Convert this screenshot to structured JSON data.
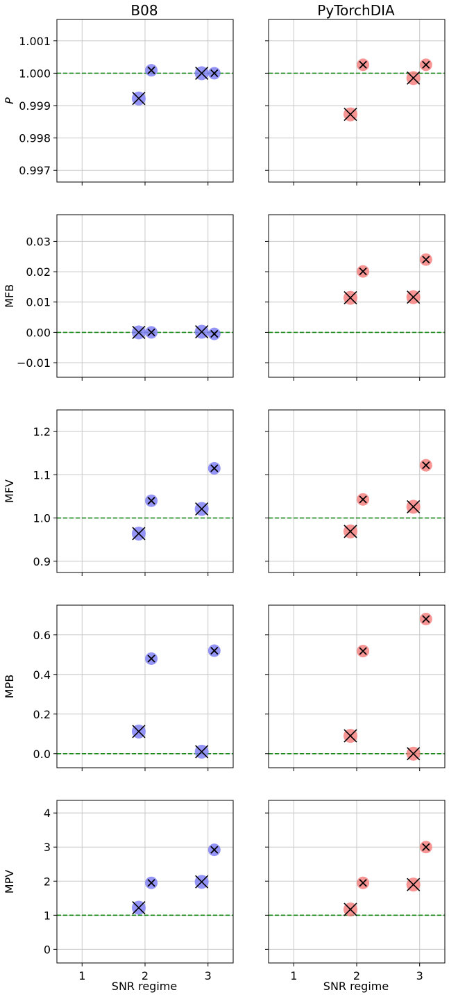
{
  "columns": [
    "B08",
    "PyTorchDIA"
  ],
  "colors": {
    "B08": "#7b7bf5",
    "PyTorchDIA": "#f57b7b",
    "reference": "#1a8a1a",
    "grid": "#c8c8c8",
    "marker": "#000000"
  },
  "x_axis": {
    "label": "SNR regime",
    "ticks": [
      1,
      2,
      3
    ],
    "tick_labels": [
      "1",
      "2",
      "3"
    ],
    "range": [
      0.6,
      3.4
    ]
  },
  "chart_data": [
    {
      "type": "scatter",
      "ylabel": "P",
      "italic": true,
      "reference": 1.0,
      "ylim": [
        0.99664,
        1.00166
      ],
      "yticks": [
        0.997,
        0.998,
        0.999,
        1.0,
        1.001
      ],
      "ytick_labels": [
        "0.997",
        "0.998",
        "0.999",
        "1.000",
        "1.001"
      ],
      "series": [
        {
          "name": "B08",
          "points": [
            {
              "x": 1.9,
              "y": 0.99922,
              "size": "large"
            },
            {
              "x": 2.1,
              "y": 1.00009,
              "size": "small"
            },
            {
              "x": 2.9,
              "y": 1.0,
              "size": "large"
            },
            {
              "x": 3.1,
              "y": 1.0,
              "size": "small"
            }
          ]
        },
        {
          "name": "PyTorchDIA",
          "points": [
            {
              "x": 1.9,
              "y": 0.99873,
              "size": "large"
            },
            {
              "x": 2.1,
              "y": 1.00026,
              "size": "small"
            },
            {
              "x": 2.9,
              "y": 0.99985,
              "size": "large"
            },
            {
              "x": 3.1,
              "y": 1.00026,
              "size": "small"
            }
          ]
        }
      ]
    },
    {
      "type": "scatter",
      "ylabel": "MFB",
      "italic": false,
      "reference": 0.0,
      "ylim": [
        -0.0148,
        0.0388
      ],
      "yticks": [
        -0.01,
        0.0,
        0.01,
        0.02,
        0.03
      ],
      "ytick_labels": [
        "−0.01",
        "0.00",
        "0.01",
        "0.02",
        "0.03"
      ],
      "series": [
        {
          "name": "B08",
          "points": [
            {
              "x": 1.9,
              "y": 0.0,
              "size": "large"
            },
            {
              "x": 2.1,
              "y": 0.0,
              "size": "small"
            },
            {
              "x": 2.9,
              "y": 0.0002,
              "size": "large"
            },
            {
              "x": 3.1,
              "y": -0.0005,
              "size": "small"
            }
          ]
        },
        {
          "name": "PyTorchDIA",
          "points": [
            {
              "x": 1.9,
              "y": 0.0114,
              "size": "large"
            },
            {
              "x": 2.1,
              "y": 0.0201,
              "size": "small"
            },
            {
              "x": 2.9,
              "y": 0.0116,
              "size": "large"
            },
            {
              "x": 3.1,
              "y": 0.024,
              "size": "small"
            }
          ]
        }
      ]
    },
    {
      "type": "scatter",
      "ylabel": "MFV",
      "italic": false,
      "reference": 1.0,
      "ylim": [
        0.874,
        1.25
      ],
      "yticks": [
        0.9,
        1.0,
        1.1,
        1.2
      ],
      "ytick_labels": [
        "0.9",
        "1.0",
        "1.1",
        "1.2"
      ],
      "series": [
        {
          "name": "B08",
          "points": [
            {
              "x": 1.9,
              "y": 0.964,
              "size": "large"
            },
            {
              "x": 2.1,
              "y": 1.04,
              "size": "small"
            },
            {
              "x": 2.9,
              "y": 1.021,
              "size": "large"
            },
            {
              "x": 3.1,
              "y": 1.115,
              "size": "small"
            }
          ]
        },
        {
          "name": "PyTorchDIA",
          "points": [
            {
              "x": 1.9,
              "y": 0.969,
              "size": "large"
            },
            {
              "x": 2.1,
              "y": 1.043,
              "size": "small"
            },
            {
              "x": 2.9,
              "y": 1.026,
              "size": "large"
            },
            {
              "x": 3.1,
              "y": 1.122,
              "size": "small"
            }
          ]
        }
      ]
    },
    {
      "type": "scatter",
      "ylabel": "MPB",
      "italic": false,
      "reference": 0.0,
      "ylim": [
        -0.071,
        0.75
      ],
      "yticks": [
        0.0,
        0.2,
        0.4,
        0.6
      ],
      "ytick_labels": [
        "0.0",
        "0.2",
        "0.4",
        "0.6"
      ],
      "series": [
        {
          "name": "B08",
          "points": [
            {
              "x": 1.9,
              "y": 0.112,
              "size": "large"
            },
            {
              "x": 2.1,
              "y": 0.48,
              "size": "small"
            },
            {
              "x": 2.9,
              "y": 0.01,
              "size": "large"
            },
            {
              "x": 3.1,
              "y": 0.52,
              "size": "small"
            }
          ]
        },
        {
          "name": "PyTorchDIA",
          "points": [
            {
              "x": 1.9,
              "y": 0.09,
              "size": "large"
            },
            {
              "x": 2.1,
              "y": 0.518,
              "size": "small"
            },
            {
              "x": 2.9,
              "y": 0.0,
              "size": "large"
            },
            {
              "x": 3.1,
              "y": 0.68,
              "size": "small"
            }
          ]
        }
      ]
    },
    {
      "type": "scatter",
      "ylabel": "MPV",
      "italic": false,
      "reference": 1.0,
      "ylim": [
        -0.4,
        4.37
      ],
      "yticks": [
        0,
        1,
        2,
        3,
        4
      ],
      "ytick_labels": [
        "0",
        "1",
        "2",
        "3",
        "4"
      ],
      "series": [
        {
          "name": "B08",
          "points": [
            {
              "x": 1.9,
              "y": 1.22,
              "size": "large"
            },
            {
              "x": 2.1,
              "y": 1.95,
              "size": "small"
            },
            {
              "x": 2.9,
              "y": 1.98,
              "size": "large"
            },
            {
              "x": 3.1,
              "y": 2.92,
              "size": "small"
            }
          ]
        },
        {
          "name": "PyTorchDIA",
          "points": [
            {
              "x": 1.9,
              "y": 1.17,
              "size": "large"
            },
            {
              "x": 2.1,
              "y": 1.95,
              "size": "small"
            },
            {
              "x": 2.9,
              "y": 1.9,
              "size": "large"
            },
            {
              "x": 3.1,
              "y": 3.0,
              "size": "small"
            }
          ]
        }
      ]
    }
  ]
}
